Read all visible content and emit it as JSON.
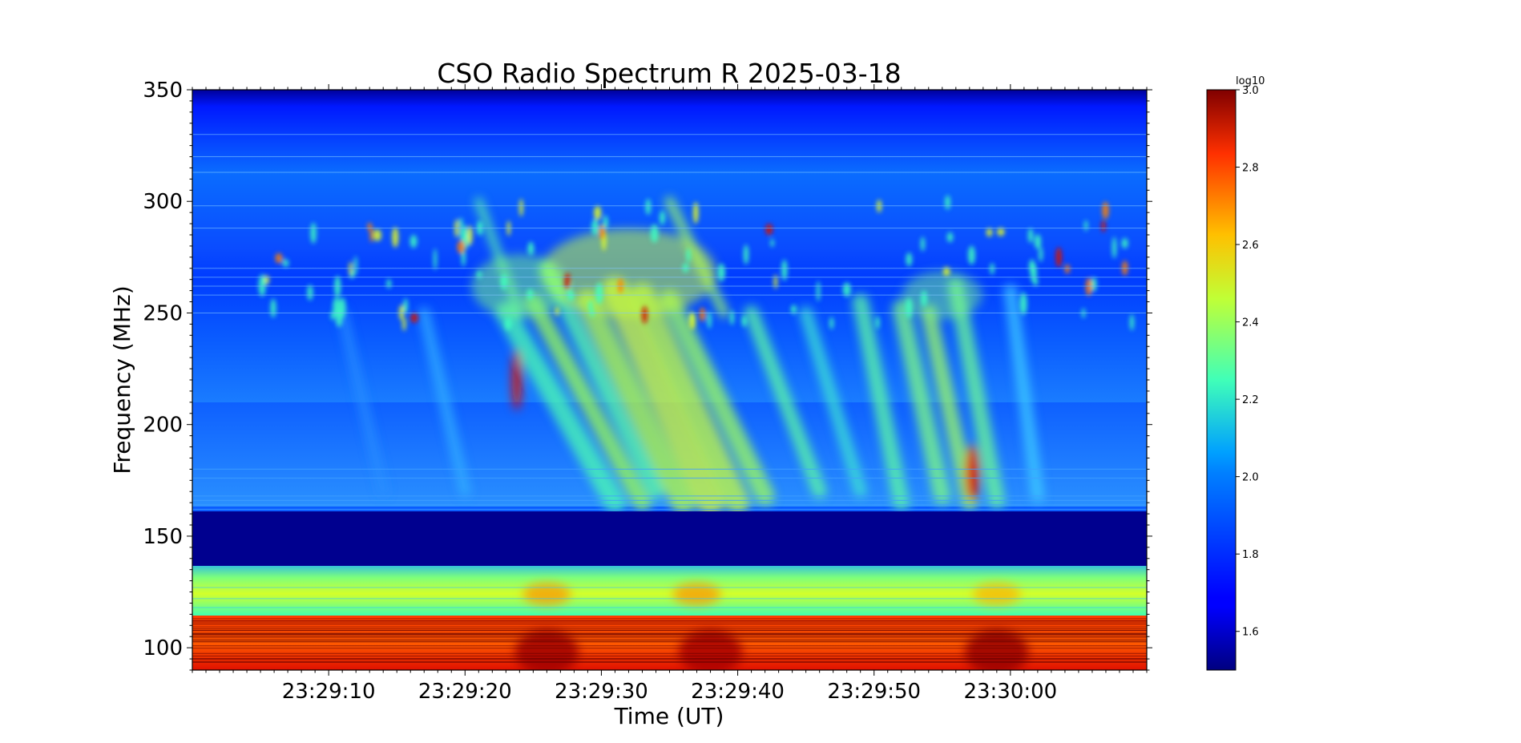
{
  "chart_data": {
    "type": "heatmap",
    "title": "CSO Radio Spectrum R 2025-03-18",
    "xlabel": "Time (UT)",
    "ylabel": "Frequency (MHz)",
    "x_tick_labels": [
      "23:29:10",
      "23:29:20",
      "23:29:30",
      "23:29:40",
      "23:29:50",
      "23:30:00"
    ],
    "x_tick_seconds": [
      10,
      20,
      30,
      40,
      50,
      60
    ],
    "xlim_seconds": [
      0,
      70
    ],
    "x_reference_time": "23:29:00",
    "y_tick_values": [
      100,
      150,
      200,
      250,
      300,
      350
    ],
    "ylim": [
      90,
      350
    ],
    "colorbar": {
      "label": "log10",
      "colormap": "jet",
      "range": [
        1.5,
        3.0
      ],
      "tick_values": [
        1.6,
        1.8,
        2.0,
        2.2,
        2.4,
        2.6,
        2.8,
        3.0
      ],
      "tick_labels": [
        "1.6",
        "1.8",
        "2.0",
        "2.2",
        "2.4",
        "2.6",
        "2.8",
        "3.0"
      ]
    },
    "grid": false,
    "spectrum_regions": [
      {
        "freq_range": [
          90,
          115
        ],
        "intensity": 2.8
      },
      {
        "freq_range": [
          115,
          137
        ],
        "intensity": 2.3
      },
      {
        "freq_range": [
          137,
          161
        ],
        "intensity": 1.5
      },
      {
        "freq_range": [
          161,
          250
        ],
        "intensity": 1.85
      },
      {
        "freq_range": [
          250,
          290
        ],
        "intensity": 1.95
      },
      {
        "freq_range": [
          290,
          335
        ],
        "intensity": 1.8
      },
      {
        "freq_range": [
          335,
          350
        ],
        "intensity": 1.6
      }
    ]
  }
}
